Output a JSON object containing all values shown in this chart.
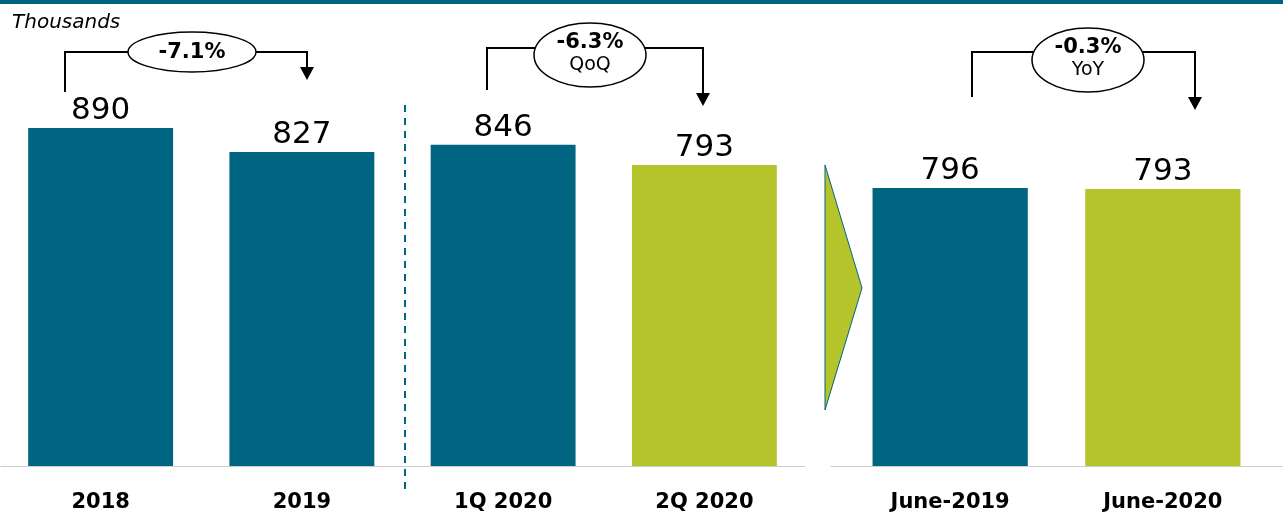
{
  "chart_data": [
    {
      "type": "bar",
      "categories": [
        "2018",
        "2019",
        "1Q 2020",
        "2Q 2020"
      ],
      "values": [
        890,
        827,
        846,
        793
      ],
      "colors": [
        "#006580",
        "#006580",
        "#006580",
        "#b5c42a"
      ],
      "data_labels": true,
      "annotations": [
        "Thousands",
        "-7.1%",
        "-6.3% QoQ"
      ]
    },
    {
      "type": "bar",
      "categories": [
        "June-2019",
        "June-2020"
      ],
      "values": [
        796,
        793
      ],
      "colors": [
        "#006580",
        "#b5c42a"
      ],
      "data_labels": true,
      "annotations": [
        "-0.3% YoY"
      ]
    }
  ]
}
